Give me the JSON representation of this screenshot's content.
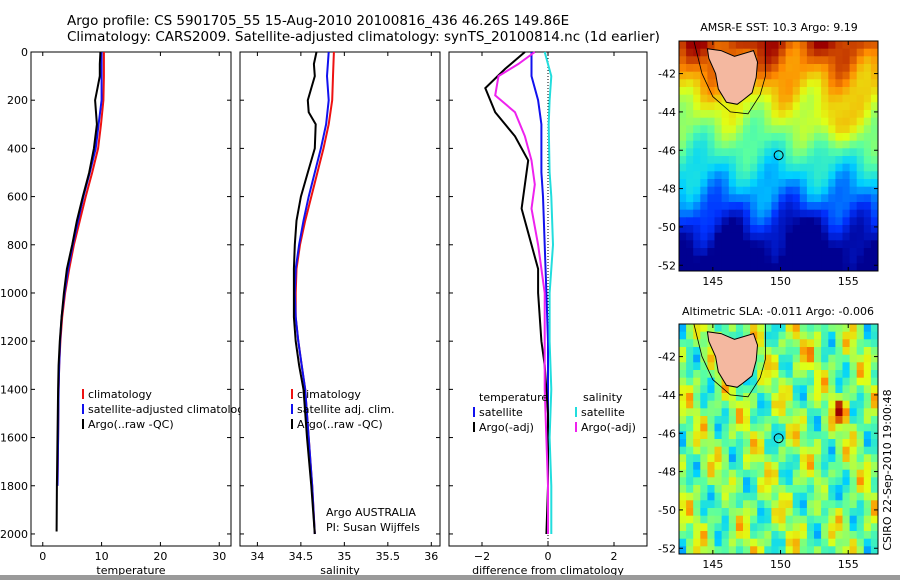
{
  "header": {
    "line1": "Argo profile: CS 5901705_55 15-Aug-2010 20100816_436 46.26S 149.86E",
    "line2": "Climatology: CARS2009. Satellite-adjusted climatology: synTS_20100814.nc (1d earlier)"
  },
  "side_label": "CSIRO 22-Sep-2010 19:00:48",
  "colors": {
    "climatology": "#ee1111",
    "satellite": "#1111ee",
    "argo": "#000000",
    "satellite_sal": "#22dddd",
    "argo_sal": "#ee22ee"
  },
  "chart_data": [
    {
      "id": "temperature",
      "type": "line",
      "xlabel": "temperature",
      "ylabel": "",
      "xlim": [
        -2,
        32
      ],
      "ylim": [
        2050,
        0
      ],
      "xticks": [
        0,
        10,
        20,
        30
      ],
      "yticks": [
        0,
        200,
        400,
        600,
        800,
        1000,
        1200,
        1400,
        1600,
        1800,
        2000
      ],
      "legend": [
        "climatology",
        "satellite-adjusted climatology",
        "Argo(..raw -QC)"
      ],
      "series": [
        {
          "name": "climatology",
          "color_key": "climatology",
          "points": [
            [
              10.4,
              0
            ],
            [
              10.4,
              100
            ],
            [
              10.3,
              200
            ],
            [
              9.9,
              300
            ],
            [
              9.4,
              400
            ],
            [
              8.4,
              500
            ],
            [
              7.3,
              600
            ],
            [
              6.3,
              700
            ],
            [
              5.3,
              800
            ],
            [
              4.5,
              900
            ],
            [
              3.8,
              1000
            ],
            [
              3.3,
              1100
            ],
            [
              3.0,
              1200
            ],
            [
              2.8,
              1300
            ],
            [
              2.7,
              1400
            ],
            [
              2.6,
              1600
            ],
            [
              2.5,
              1800
            ]
          ]
        },
        {
          "name": "satellite-adjusted climatology",
          "color_key": "satellite",
          "points": [
            [
              10.0,
              0
            ],
            [
              10.0,
              100
            ],
            [
              10.0,
              200
            ],
            [
              9.5,
              300
            ],
            [
              9.0,
              400
            ],
            [
              8.0,
              500
            ],
            [
              6.9,
              600
            ],
            [
              6.0,
              700
            ],
            [
              5.1,
              800
            ],
            [
              4.3,
              900
            ],
            [
              3.7,
              1000
            ],
            [
              3.2,
              1100
            ],
            [
              2.95,
              1200
            ],
            [
              2.8,
              1300
            ],
            [
              2.7,
              1400
            ],
            [
              2.6,
              1600
            ],
            [
              2.5,
              1800
            ]
          ]
        },
        {
          "name": "Argo(..raw -QC)",
          "color_key": "argo",
          "points": [
            [
              9.8,
              0
            ],
            [
              9.7,
              50
            ],
            [
              9.7,
              100
            ],
            [
              9.3,
              150
            ],
            [
              8.9,
              200
            ],
            [
              9.2,
              300
            ],
            [
              8.7,
              400
            ],
            [
              7.9,
              500
            ],
            [
              6.8,
              600
            ],
            [
              5.8,
              700
            ],
            [
              5.0,
              800
            ],
            [
              4.1,
              900
            ],
            [
              3.6,
              1000
            ],
            [
              3.2,
              1100
            ],
            [
              2.9,
              1200
            ],
            [
              2.7,
              1300
            ],
            [
              2.6,
              1400
            ],
            [
              2.5,
              1600
            ],
            [
              2.4,
              1800
            ],
            [
              2.35,
              1990
            ]
          ]
        }
      ]
    },
    {
      "id": "salinity",
      "type": "line",
      "xlabel": "salinity",
      "ylabel": "",
      "xlim": [
        33.8,
        36.1
      ],
      "ylim": [
        2050,
        0
      ],
      "xticks": [
        34,
        34.5,
        35,
        35.5,
        36
      ],
      "xticklabels": [
        "34",
        "34.5",
        "35",
        "35.5",
        "36"
      ],
      "yticks": [
        0,
        200,
        400,
        600,
        800,
        1000,
        1200,
        1400,
        1600,
        1800,
        2000
      ],
      "legend": [
        "climatology",
        "satellite adj. clim.",
        "Argo(..raw -QC)"
      ],
      "annotations": [
        "Argo AUSTRALIA",
        "PI: Susan Wijffels"
      ],
      "series": [
        {
          "name": "climatology",
          "color_key": "climatology",
          "points": [
            [
              34.88,
              0
            ],
            [
              34.87,
              100
            ],
            [
              34.86,
              200
            ],
            [
              34.82,
              300
            ],
            [
              34.76,
              400
            ],
            [
              34.69,
              500
            ],
            [
              34.62,
              600
            ],
            [
              34.55,
              700
            ],
            [
              34.49,
              800
            ],
            [
              34.45,
              900
            ],
            [
              34.44,
              1000
            ],
            [
              34.44,
              1100
            ],
            [
              34.47,
              1200
            ],
            [
              34.51,
              1300
            ],
            [
              34.55,
              1400
            ],
            [
              34.59,
              1600
            ],
            [
              34.63,
              1800
            ],
            [
              34.66,
              2000
            ]
          ]
        },
        {
          "name": "satellite adj. clim.",
          "color_key": "satellite",
          "points": [
            [
              34.82,
              0
            ],
            [
              34.8,
              100
            ],
            [
              34.82,
              200
            ],
            [
              34.79,
              300
            ],
            [
              34.73,
              400
            ],
            [
              34.66,
              500
            ],
            [
              34.59,
              600
            ],
            [
              34.53,
              700
            ],
            [
              34.48,
              800
            ],
            [
              34.44,
              900
            ],
            [
              34.43,
              1000
            ],
            [
              34.44,
              1100
            ],
            [
              34.47,
              1200
            ],
            [
              34.51,
              1300
            ],
            [
              34.55,
              1400
            ],
            [
              34.59,
              1600
            ],
            [
              34.63,
              1800
            ],
            [
              34.66,
              2000
            ]
          ]
        },
        {
          "name": "Argo(..raw -QC)",
          "color_key": "argo",
          "points": [
            [
              34.68,
              0
            ],
            [
              34.65,
              50
            ],
            [
              34.66,
              100
            ],
            [
              34.62,
              150
            ],
            [
              34.58,
              200
            ],
            [
              34.59,
              250
            ],
            [
              34.67,
              300
            ],
            [
              34.66,
              400
            ],
            [
              34.58,
              500
            ],
            [
              34.5,
              600
            ],
            [
              34.45,
              700
            ],
            [
              34.43,
              800
            ],
            [
              34.42,
              900
            ],
            [
              34.42,
              1000
            ],
            [
              34.42,
              1100
            ],
            [
              34.44,
              1200
            ],
            [
              34.48,
              1300
            ],
            [
              34.53,
              1400
            ],
            [
              34.57,
              1600
            ],
            [
              34.62,
              1800
            ],
            [
              34.66,
              2000
            ]
          ]
        }
      ]
    },
    {
      "id": "difference",
      "type": "line",
      "xlabel": "difference from climatology",
      "ylabel": "",
      "xlim": [
        -3,
        3
      ],
      "ylim": [
        2050,
        0
      ],
      "xticks": [
        -2,
        0,
        2
      ],
      "xticklabels": [
        "−2",
        "0",
        "2"
      ],
      "yticks": [
        0,
        200,
        400,
        600,
        800,
        1000,
        1200,
        1400,
        1600,
        1800,
        2000
      ],
      "legend_temperature": [
        "temperature",
        "satellite",
        "Argo(-adj)"
      ],
      "legend_salinity": [
        "salinity",
        "satellite",
        "Argo(-adj)"
      ],
      "series": [
        {
          "name": "temperature satellite",
          "color_key": "satellite",
          "points": [
            [
              -0.5,
              0
            ],
            [
              -0.5,
              100
            ],
            [
              -0.3,
              200
            ],
            [
              -0.2,
              300
            ],
            [
              -0.2,
              400
            ],
            [
              -0.2,
              500
            ],
            [
              -0.15,
              600
            ],
            [
              -0.1,
              800
            ],
            [
              -0.05,
              1000
            ],
            [
              0,
              1200
            ],
            [
              0,
              1600
            ],
            [
              0,
              2000
            ]
          ]
        },
        {
          "name": "temperature Argo(-adj)",
          "color_key": "argo",
          "points": [
            [
              -0.7,
              0
            ],
            [
              -1.3,
              70
            ],
            [
              -1.9,
              150
            ],
            [
              -1.6,
              250
            ],
            [
              -1.0,
              350
            ],
            [
              -0.6,
              450
            ],
            [
              -0.7,
              550
            ],
            [
              -0.8,
              650
            ],
            [
              -0.6,
              750
            ],
            [
              -0.3,
              900
            ],
            [
              -0.3,
              1000
            ],
            [
              -0.2,
              1200
            ],
            [
              -0.1,
              1300
            ],
            [
              0,
              1500
            ],
            [
              0,
              1800
            ],
            [
              -0.05,
              2000
            ]
          ]
        },
        {
          "name": "salinity satellite",
          "color_key": "satellite_sal",
          "points": [
            [
              -0.1,
              0
            ],
            [
              0.1,
              100
            ],
            [
              0.05,
              200
            ],
            [
              0.02,
              300
            ],
            [
              0.05,
              500
            ],
            [
              0.1,
              600
            ],
            [
              0.15,
              800
            ],
            [
              0.05,
              1000
            ],
            [
              0.05,
              1200
            ],
            [
              0.1,
              1400
            ],
            [
              0.05,
              1600
            ],
            [
              0.1,
              1800
            ],
            [
              0.1,
              2000
            ]
          ]
        },
        {
          "name": "salinity Argo(-adj)",
          "color_key": "argo_sal",
          "points": [
            [
              -0.4,
              0
            ],
            [
              -0.9,
              50
            ],
            [
              -1.5,
              100
            ],
            [
              -1.6,
              180
            ],
            [
              -1.0,
              250
            ],
            [
              -0.7,
              350
            ],
            [
              -0.5,
              450
            ],
            [
              -0.4,
              550
            ],
            [
              -0.5,
              650
            ],
            [
              -0.3,
              800
            ],
            [
              -0.1,
              1000
            ],
            [
              -0.1,
              1200
            ],
            [
              -0.1,
              1400
            ],
            [
              0,
              1800
            ],
            [
              0,
              2000
            ]
          ]
        }
      ]
    },
    {
      "id": "sst-map",
      "type": "heatmap",
      "title": "AMSR-E SST: 10.3 Argo: 9.19",
      "xlim": [
        142.5,
        157.2
      ],
      "ylim": [
        -52.3,
        -40.3
      ],
      "xticks": [
        145,
        150,
        155
      ],
      "yticks": [
        -42,
        -44,
        -46,
        -48,
        -50,
        -52
      ],
      "marker": [
        149.86,
        -46.26
      ]
    },
    {
      "id": "sla-map",
      "type": "heatmap",
      "title": "Altimetric SLA: -0.011 Argo: -0.006",
      "xlim": [
        142.5,
        157.2
      ],
      "ylim": [
        -52.3,
        -40.3
      ],
      "xticks": [
        145,
        150,
        155
      ],
      "yticks": [
        -42,
        -44,
        -46,
        -48,
        -50,
        -52
      ],
      "marker": [
        149.86,
        -46.26
      ]
    }
  ]
}
